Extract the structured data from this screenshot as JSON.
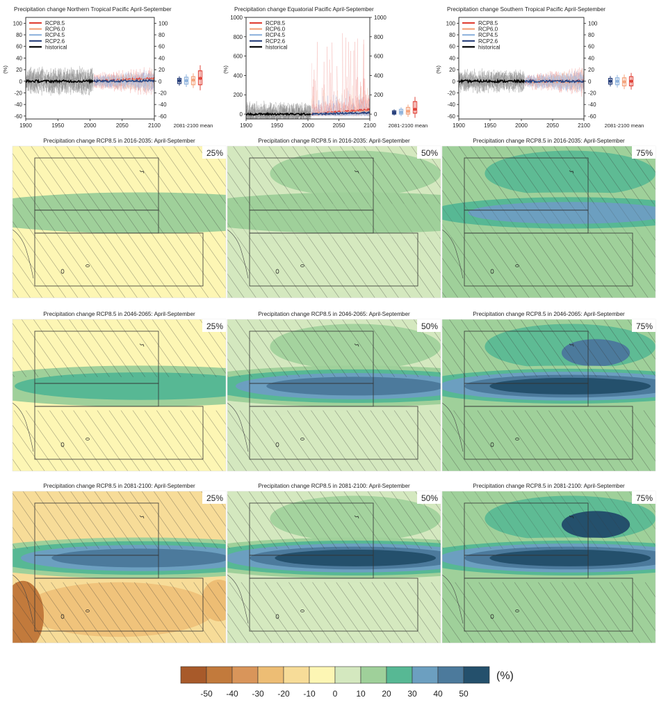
{
  "chart_data": [
    {
      "type": "line",
      "title": "Precipitation change Northern Tropical Pacific April-September",
      "ylabel": "(%)",
      "ylim": [
        -65,
        110
      ],
      "yticks": [
        -60,
        -40,
        -20,
        0,
        20,
        40,
        60,
        80,
        100
      ],
      "xlim": [
        1900,
        2100
      ],
      "xticks": [
        1900,
        1950,
        2000,
        2050,
        2100
      ],
      "mean_label": "2081-2100 mean",
      "series": [
        {
          "name": "RCP8.5",
          "color": "#e0443a",
          "range": [
            -25,
            35
          ],
          "mean_2081_2100": 5,
          "box": [
            -6,
            18
          ]
        },
        {
          "name": "RCP6.0",
          "color": "#f4a37c",
          "range": [
            -20,
            25
          ],
          "mean_2081_2100": 2,
          "box": [
            -6,
            8
          ]
        },
        {
          "name": "RCP4.5",
          "color": "#8fb3dd",
          "range": [
            -20,
            25
          ],
          "mean_2081_2100": 1,
          "box": [
            -5,
            7
          ]
        },
        {
          "name": "RCP2.6",
          "color": "#263e7a",
          "range": [
            -20,
            25
          ],
          "mean_2081_2100": 1,
          "box": [
            -4,
            5
          ]
        },
        {
          "name": "historical",
          "color": "#000000",
          "range": [
            -25,
            30
          ],
          "mean_2081_2100": null,
          "box": null
        }
      ]
    },
    {
      "type": "line",
      "title": "Precipitation change Equatorial Pacific April-September",
      "ylabel": "(%)",
      "ylim": [
        -50,
        1000
      ],
      "yticks": [
        0,
        200,
        400,
        600,
        800,
        1000
      ],
      "yticks_right": [
        0,
        200,
        400,
        600,
        800,
        1000
      ],
      "xlim": [
        1900,
        2100
      ],
      "xticks": [
        1900,
        1950,
        2000,
        2050,
        2100
      ],
      "mean_label": "2081-2100 mean",
      "series": [
        {
          "name": "RCP8.5",
          "color": "#e0443a",
          "range": [
            -20,
            900
          ],
          "mean_2081_2100": 50,
          "box": [
            10,
            130
          ]
        },
        {
          "name": "RCP6.0",
          "color": "#f4a37c",
          "range": [
            -20,
            300
          ],
          "mean_2081_2100": 30,
          "box": [
            0,
            70
          ]
        },
        {
          "name": "RCP4.5",
          "color": "#8fb3dd",
          "range": [
            -20,
            250
          ],
          "mean_2081_2100": 20,
          "box": [
            0,
            50
          ]
        },
        {
          "name": "RCP2.6",
          "color": "#263e7a",
          "range": [
            -20,
            200
          ],
          "mean_2081_2100": 15,
          "box": [
            0,
            35
          ]
        },
        {
          "name": "historical",
          "color": "#000000",
          "range": [
            -30,
            250
          ],
          "mean_2081_2100": null,
          "box": null
        }
      ]
    },
    {
      "type": "line",
      "title": "Precipitation change Southern Tropical Pacific April-September",
      "ylabel": "(%)",
      "ylim": [
        -65,
        110
      ],
      "yticks": [
        -60,
        -40,
        -20,
        0,
        20,
        40,
        60,
        80,
        100
      ],
      "xlim": [
        1900,
        2100
      ],
      "xticks": [
        1900,
        1950,
        2000,
        2050,
        2100
      ],
      "mean_label": "2081-2100 mean",
      "series": [
        {
          "name": "RCP8.5",
          "color": "#e0443a",
          "range": [
            -25,
            30
          ],
          "mean_2081_2100": 0,
          "box": [
            -8,
            8
          ]
        },
        {
          "name": "RCP6.0",
          "color": "#f4a37c",
          "range": [
            -20,
            25
          ],
          "mean_2081_2100": -1,
          "box": [
            -8,
            6
          ]
        },
        {
          "name": "RCP4.5",
          "color": "#8fb3dd",
          "range": [
            -20,
            25
          ],
          "mean_2081_2100": 0,
          "box": [
            -6,
            6
          ]
        },
        {
          "name": "RCP2.6",
          "color": "#263e7a",
          "range": [
            -20,
            25
          ],
          "mean_2081_2100": 0,
          "box": [
            -5,
            5
          ]
        },
        {
          "name": "historical",
          "color": "#000000",
          "range": [
            -20,
            25
          ],
          "mean_2081_2100": null,
          "box": null
        }
      ]
    },
    {
      "type": "heatmap",
      "description": "Precipitation change maps for RCP8.5, April-September, rows are time periods, columns are percentiles",
      "map_titles": [
        "Precipitation change RCP8.5 in 2016-2035: April-September",
        "Precipitation change RCP8.5 in 2046-2065: April-September",
        "Precipitation change RCP8.5 in 2081-2100: April-September"
      ],
      "percentiles": [
        "25%",
        "50%",
        "75%"
      ],
      "equatorial_band_change": [
        [
          10,
          15,
          30
        ],
        [
          20,
          40,
          50
        ],
        [
          40,
          50,
          50
        ]
      ],
      "background_change": [
        [
          -5,
          5,
          10
        ],
        [
          -10,
          5,
          10
        ],
        [
          -20,
          5,
          10
        ]
      ],
      "colorbar": {
        "unit": "(%)",
        "ticks": [
          -50,
          -40,
          -30,
          -20,
          -10,
          0,
          10,
          20,
          30,
          40,
          50
        ],
        "colors": [
          "#a85a2a",
          "#c27a3c",
          "#d9955a",
          "#edbd74",
          "#f7dc98",
          "#fdf6b4",
          "#d4e8bf",
          "#9fd09a",
          "#57b894",
          "#6c9fc0",
          "#4c7a9c",
          "#24506c"
        ]
      }
    }
  ]
}
